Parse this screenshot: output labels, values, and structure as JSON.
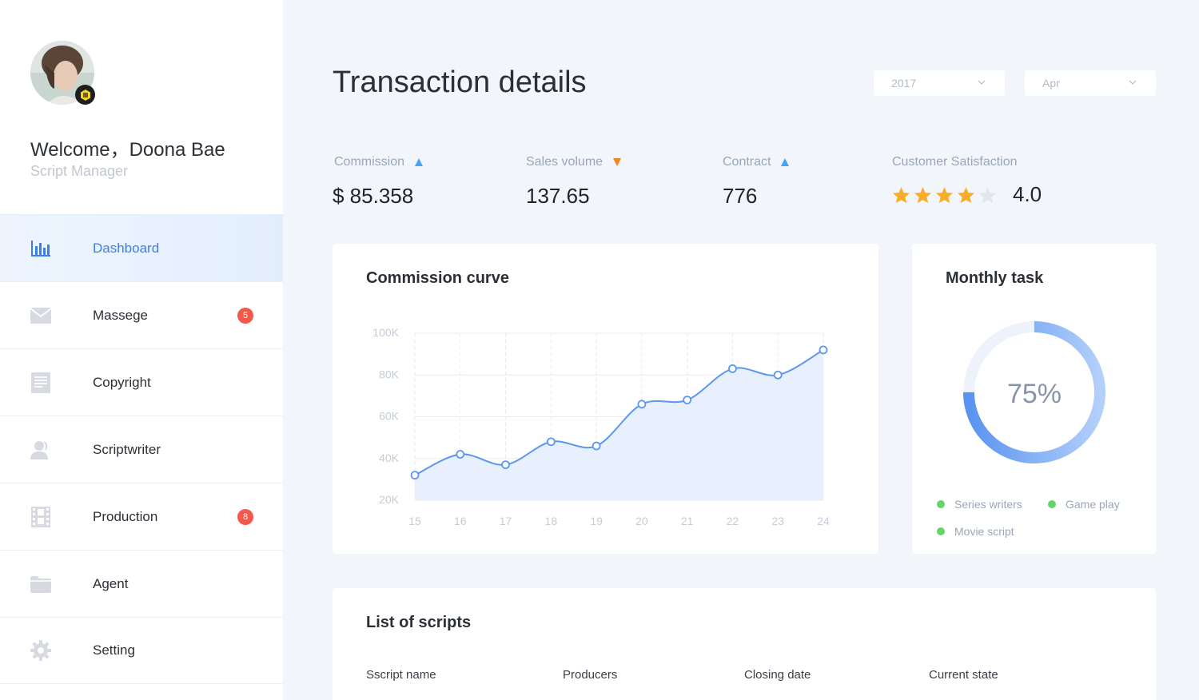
{
  "user": {
    "greeting": "Welcome，",
    "name": "Doona Bae",
    "role": "Script Manager"
  },
  "nav": [
    {
      "label": "Dashboard",
      "icon": "bar-chart-icon",
      "active": true
    },
    {
      "label": "Massege",
      "icon": "envelope-icon",
      "badge": "5"
    },
    {
      "label": "Copyright",
      "icon": "document-icon"
    },
    {
      "label": "Scriptwriter",
      "icon": "user-icon"
    },
    {
      "label": "Production",
      "icon": "film-icon",
      "badge": "8"
    },
    {
      "label": "Agent",
      "icon": "folder-icon"
    },
    {
      "label": "Setting",
      "icon": "gear-icon"
    }
  ],
  "header": {
    "title": "Transaction details",
    "year": "2017",
    "month": "Apr"
  },
  "stats": {
    "commission": {
      "label": "Commission",
      "value": "$ 85.358",
      "trend": "up"
    },
    "sales": {
      "label": "Sales volume",
      "value": "137.65",
      "trend": "down"
    },
    "contract": {
      "label": "Contract",
      "value": "776",
      "trend": "up"
    },
    "satisfaction": {
      "label": "Customer Satisfaction",
      "value": "4.0",
      "stars": 4,
      "max_stars": 5
    }
  },
  "commission_card": {
    "title": "Commission curve"
  },
  "chart_data": {
    "type": "area",
    "x": [
      "15",
      "16",
      "17",
      "18",
      "19",
      "20",
      "21",
      "22",
      "23",
      "24"
    ],
    "series": [
      {
        "values": [
          32000,
          42000,
          37000,
          48000,
          46000,
          66000,
          68000,
          83000,
          80000,
          92000
        ]
      }
    ],
    "ylim": [
      20000,
      100000
    ],
    "yticks": [
      "100K",
      "80K",
      "60K",
      "40K",
      "20K"
    ],
    "grid": true
  },
  "task_card": {
    "title": "Monthly task",
    "percent_label": "75%",
    "progress": 0.75,
    "legend": [
      "Series writers",
      "Game play",
      "Movie script"
    ]
  },
  "scripts_card": {
    "title": "List of scripts",
    "columns": [
      "Sscript name",
      "Producers",
      "Closing date",
      "Current state"
    ]
  },
  "colors": {
    "accent": "#3d7fe6",
    "line": "#5b97ee",
    "area": "#e4eefc",
    "badge": "#f2594b",
    "star": "#f9ac28",
    "legend_dot": "#66d46c"
  }
}
